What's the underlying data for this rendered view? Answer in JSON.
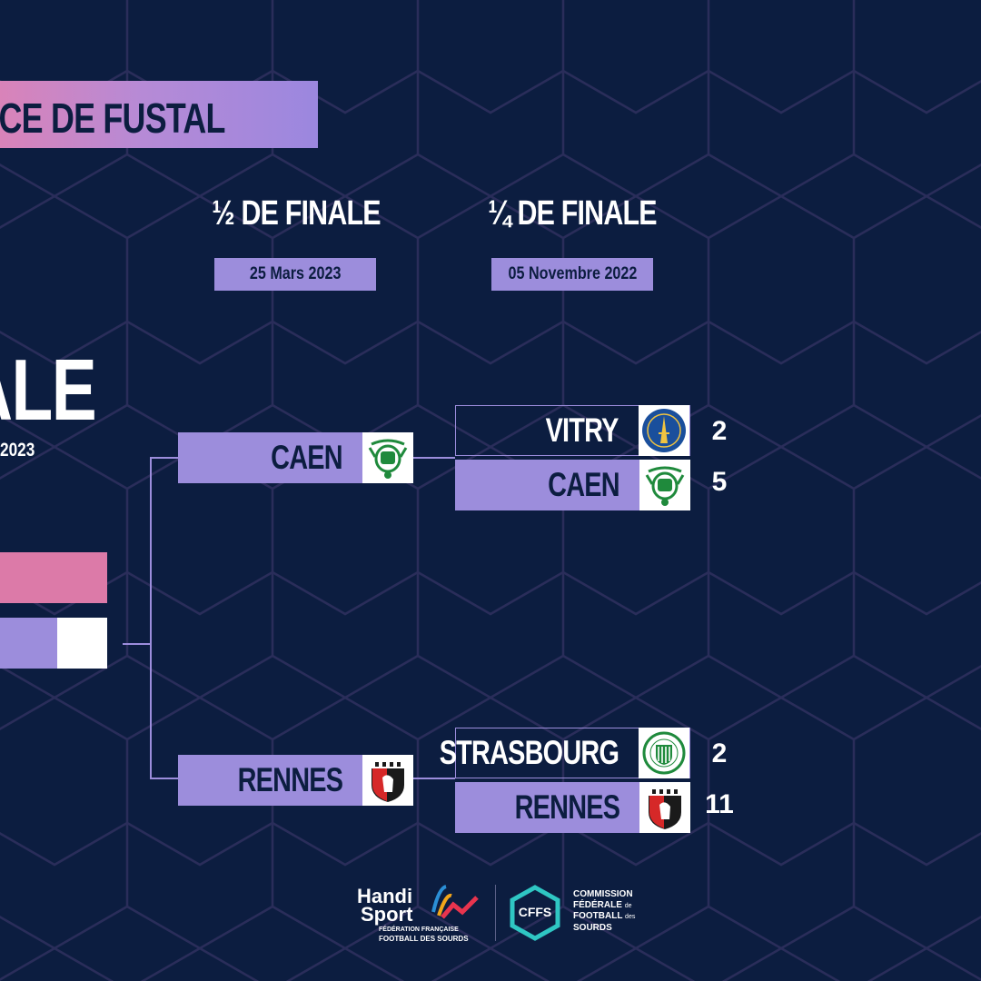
{
  "colors": {
    "background": "#0c1d40",
    "accent_violet": "#9c8ddc",
    "accent_pink": "#dc7aa8",
    "white": "#ffffff"
  },
  "title": "NCE DE FUSTAL",
  "rounds": {
    "semi": {
      "label": "½ DE FINALE",
      "date": "25 Mars 2023"
    },
    "quarter": {
      "label": "¼ DE FINALE",
      "date": "05 Novembre 2022"
    }
  },
  "final": {
    "label": "ALE",
    "date": "2023"
  },
  "semifinals": [
    {
      "team": "CAEN",
      "logo": "caen-crest-icon"
    },
    {
      "team": "RENNES",
      "logo": "rennes-crest-icon"
    }
  ],
  "quarterfinals": [
    {
      "home": {
        "team": "VITRY",
        "score": "2",
        "logo": "vitry-crest-icon"
      },
      "away": {
        "team": "CAEN",
        "score": "5",
        "logo": "caen-crest-icon"
      }
    },
    {
      "home": {
        "team": "STRASBOURG",
        "score": "2",
        "logo": "strasbourg-crest-icon"
      },
      "away": {
        "team": "RENNES",
        "score": "11",
        "logo": "rennes-crest-icon"
      }
    }
  ],
  "footer": {
    "handisport": {
      "line1": "Handi",
      "line2": "Sport",
      "sub1": "FÉDÉRATION FRANÇAISE",
      "sub2": "FOOTBALL DES SOURDS"
    },
    "cffs": {
      "badge": "CFFS",
      "l1": "COMMISSION",
      "l2a": "FÉDÉRALE",
      "l2b": "de",
      "l3a": "FOOTBALL",
      "l3b": "des",
      "l4": "SOURDS"
    }
  }
}
